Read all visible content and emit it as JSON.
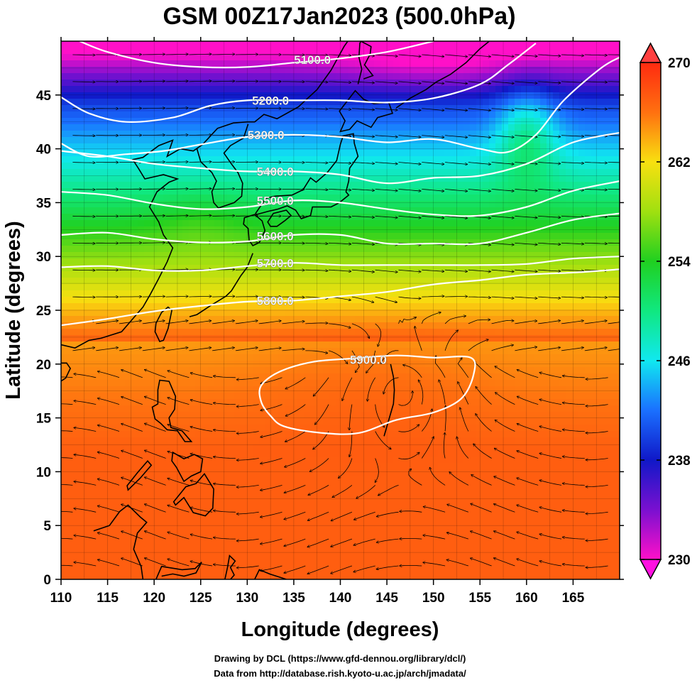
{
  "title": "GSM 00Z17Jan2023 (500.0hPa)",
  "x_axis": {
    "label": "Longitude (degrees)",
    "range": [
      110,
      170
    ],
    "ticks": [
      110,
      115,
      120,
      125,
      130,
      135,
      140,
      145,
      150,
      155,
      160,
      165
    ]
  },
  "y_axis": {
    "label": "Latitude  (degrees)",
    "range": [
      0,
      50
    ],
    "ticks": [
      0,
      5,
      10,
      15,
      20,
      25,
      30,
      35,
      40,
      45
    ]
  },
  "colorbar": {
    "range": [
      230,
      270
    ],
    "ticks": [
      270,
      262,
      254,
      246,
      238,
      230
    ],
    "stops": [
      {
        "value": 230,
        "color": "#ff10c8"
      },
      {
        "value": 234,
        "color": "#7a10d0"
      },
      {
        "value": 238,
        "color": "#1018c8"
      },
      {
        "value": 242,
        "color": "#1a70ff"
      },
      {
        "value": 246,
        "color": "#10e8f0"
      },
      {
        "value": 250,
        "color": "#10e880"
      },
      {
        "value": 254,
        "color": "#20d020"
      },
      {
        "value": 258,
        "color": "#a0e010"
      },
      {
        "value": 262,
        "color": "#f8e010"
      },
      {
        "value": 266,
        "color": "#ff7010"
      },
      {
        "value": 270,
        "color": "#ff2a10"
      }
    ]
  },
  "contours": [
    {
      "label": "5100.0",
      "label_at": [
        137,
        48.3
      ],
      "points": [
        [
          112,
          50
        ],
        [
          115,
          49
        ],
        [
          120,
          48
        ],
        [
          125,
          47.6
        ],
        [
          130,
          47.6
        ],
        [
          135,
          48
        ],
        [
          140,
          48.4
        ],
        [
          145,
          49
        ],
        [
          150,
          50
        ]
      ]
    },
    {
      "label": "5200.0",
      "label_at": [
        132.5,
        44.5
      ],
      "points": [
        [
          110,
          44.8
        ],
        [
          113,
          43.3
        ],
        [
          117,
          42.5
        ],
        [
          122,
          42.9
        ],
        [
          126,
          44
        ],
        [
          130,
          44.5
        ],
        [
          135,
          44.5
        ],
        [
          140,
          44.5
        ],
        [
          145,
          44.3
        ],
        [
          150,
          44.7
        ],
        [
          155,
          46
        ],
        [
          158,
          47.8
        ],
        [
          161,
          49.8
        ]
      ]
    },
    {
      "label": "5300.0",
      "label_at": [
        132,
        41.3
      ],
      "points": [
        [
          110,
          40.5
        ],
        [
          113,
          39.3
        ],
        [
          117,
          39.5
        ],
        [
          121,
          39.8
        ],
        [
          125,
          40.4
        ],
        [
          130,
          41.1
        ],
        [
          135,
          41.3
        ],
        [
          140,
          41.1
        ],
        [
          145,
          40.6
        ],
        [
          150,
          40.9
        ],
        [
          155,
          40
        ],
        [
          158,
          39.7
        ],
        [
          161,
          41.3
        ],
        [
          164,
          44.5
        ],
        [
          168,
          47.5
        ],
        [
          170,
          48.5
        ]
      ]
    },
    {
      "label": "5400.0",
      "label_at": [
        133,
        37.9
      ],
      "points": [
        [
          110,
          39.8
        ],
        [
          115,
          39.3
        ],
        [
          120,
          38.6
        ],
        [
          125,
          38.2
        ],
        [
          130,
          37.9
        ],
        [
          135,
          37.9
        ],
        [
          140,
          37.6
        ],
        [
          145,
          36.8
        ],
        [
          150,
          37.3
        ],
        [
          155,
          37.5
        ],
        [
          160,
          38.6
        ],
        [
          165,
          40.6
        ],
        [
          170,
          41.5
        ]
      ]
    },
    {
      "label": "5500.0",
      "label_at": [
        133,
        35.2
      ],
      "points": [
        [
          110,
          36
        ],
        [
          115,
          35.7
        ],
        [
          120,
          34.9
        ],
        [
          125,
          34.4
        ],
        [
          130,
          34.6
        ],
        [
          135,
          35.2
        ],
        [
          140,
          35
        ],
        [
          145,
          34.4
        ],
        [
          150,
          33.9
        ],
        [
          155,
          33.8
        ],
        [
          160,
          34.6
        ],
        [
          165,
          36.1
        ],
        [
          170,
          37
        ]
      ]
    },
    {
      "label": "5600.0",
      "label_at": [
        133,
        31.9
      ],
      "points": [
        [
          110,
          32
        ],
        [
          115,
          32.2
        ],
        [
          120,
          31.6
        ],
        [
          125,
          31.3
        ],
        [
          130,
          31.4
        ],
        [
          135,
          32
        ],
        [
          140,
          32
        ],
        [
          145,
          31.2
        ],
        [
          150,
          31.2
        ],
        [
          155,
          31.2
        ],
        [
          160,
          32.2
        ],
        [
          165,
          33.4
        ],
        [
          170,
          34
        ]
      ]
    },
    {
      "label": "5700.0",
      "label_at": [
        133,
        29.4
      ],
      "points": [
        [
          110,
          29
        ],
        [
          115,
          29.1
        ],
        [
          120,
          28.7
        ],
        [
          125,
          28.7
        ],
        [
          130,
          29.1
        ],
        [
          135,
          29.4
        ],
        [
          140,
          29.2
        ],
        [
          145,
          29.2
        ],
        [
          150,
          29.2
        ],
        [
          155,
          29.2
        ],
        [
          160,
          29.3
        ],
        [
          165,
          29.8
        ],
        [
          170,
          30
        ]
      ]
    },
    {
      "label": "5800.0",
      "label_at": [
        133,
        25.9
      ],
      "points": [
        [
          110,
          23.6
        ],
        [
          115,
          24.2
        ],
        [
          120,
          24.9
        ],
        [
          125,
          25.4
        ],
        [
          130,
          25.8
        ],
        [
          135,
          25.9
        ],
        [
          140,
          26.3
        ],
        [
          145,
          26.7
        ],
        [
          150,
          27.4
        ],
        [
          155,
          27.8
        ],
        [
          160,
          28.3
        ],
        [
          165,
          28.5
        ],
        [
          170,
          28.8
        ]
      ]
    },
    {
      "label": "5900.0",
      "label_at": [
        143,
        20.4
      ],
      "closed": true,
      "points": [
        [
          131.5,
          18
        ],
        [
          133.5,
          19.3
        ],
        [
          137,
          20.2
        ],
        [
          141,
          20.5
        ],
        [
          146,
          20.8
        ],
        [
          150,
          20.6
        ],
        [
          154,
          20.6
        ],
        [
          154.3,
          19
        ],
        [
          153,
          16.8
        ],
        [
          150,
          15.5
        ],
        [
          146,
          14.8
        ],
        [
          142,
          13.6
        ],
        [
          138,
          13.6
        ],
        [
          134,
          14.2
        ],
        [
          132.5,
          15.2
        ],
        [
          131.5,
          16.5
        ]
      ]
    }
  ],
  "credits": [
    "Drawing by DCL (https://www.gfd-dennou.org/library/dcl/)",
    "Data from http://database.rish.kyoto-u.ac.jp/arch/jmadata/"
  ]
}
